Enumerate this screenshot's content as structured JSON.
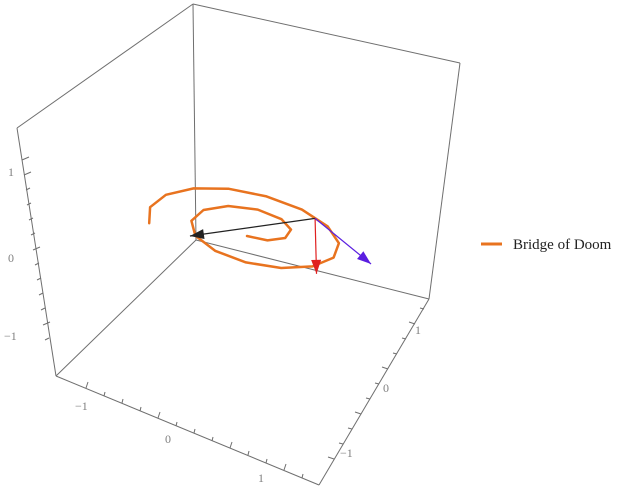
{
  "chart_data": {
    "type": "line",
    "title": "",
    "xlabel": "",
    "ylabel": "",
    "zlabel": "",
    "view": "3d-box",
    "grid": false,
    "legend_position": "right",
    "series": [
      {
        "name": "Bridge of Doom",
        "kind": "spiral-curve",
        "color": "#e8731f",
        "points": [
          [
            0.0,
            0.0,
            0.0
          ],
          [
            0.16,
            0.05,
            0.0
          ],
          [
            0.25,
            0.2,
            0.0
          ],
          [
            0.22,
            0.38,
            0.0
          ],
          [
            0.08,
            0.5,
            0.0
          ],
          [
            -0.14,
            0.52,
            0.0
          ],
          [
            -0.35,
            0.4,
            0.0
          ],
          [
            -0.47,
            0.18,
            0.0
          ],
          [
            -0.46,
            -0.08,
            0.0
          ],
          [
            -0.32,
            -0.31,
            0.0
          ],
          [
            -0.08,
            -0.45,
            0.0
          ],
          [
            0.2,
            -0.46,
            0.0
          ],
          [
            0.46,
            -0.34,
            0.0
          ],
          [
            0.64,
            -0.12,
            0.0
          ],
          [
            0.7,
            0.16,
            0.0
          ],
          [
            0.62,
            0.44,
            0.0
          ],
          [
            0.42,
            0.66,
            0.0
          ],
          [
            0.13,
            0.79,
            0.0
          ],
          [
            -0.19,
            0.8,
            0.0
          ],
          [
            -0.48,
            0.7,
            0.0
          ],
          [
            -0.7,
            0.49,
            0.0
          ],
          [
            -0.82,
            0.21,
            0.0
          ],
          [
            -0.82,
            -0.1,
            0.0
          ],
          [
            -0.7,
            -0.38,
            0.0
          ]
        ]
      }
    ],
    "vectors": [
      {
        "name": "",
        "color": "#222222",
        "from": [
          0.28,
          0.72,
          0.0
        ],
        "to": [
          -0.35,
          -0.35,
          0.0
        ]
      },
      {
        "name": "",
        "color": "#e02020",
        "from": [
          0.28,
          0.72,
          0.0
        ],
        "to": [
          0.28,
          0.72,
          -0.72
        ]
      },
      {
        "name": "",
        "color": "#5a1ee0",
        "from": [
          0.28,
          0.72,
          0.0
        ],
        "to": [
          0.98,
          0.28,
          0.0
        ]
      }
    ],
    "x_axis": {
      "range": [
        -1.5,
        1.5
      ],
      "tick_labels": [
        "−1",
        "0",
        "1"
      ]
    },
    "y_axis": {
      "range": [
        -1.5,
        1.5
      ],
      "tick_labels": [
        "−1",
        "0",
        "1"
      ]
    },
    "z_axis": {
      "range": [
        -1.5,
        1.5
      ],
      "tick_labels": [
        "−1",
        "0",
        "1"
      ]
    },
    "colors": {
      "box": "#6f6f6f",
      "tick_label": "#808080",
      "legend_text": "#222222"
    }
  }
}
